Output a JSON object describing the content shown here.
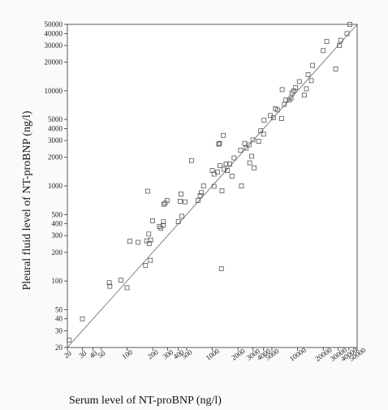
{
  "chart_data": {
    "type": "scatter",
    "title": "",
    "xlabel": "Serum level of NT-proBNP (ng/l)",
    "ylabel": "Pleural fluid level of NT-proBNP (ng/l)",
    "xscale": "log",
    "yscale": "log",
    "xlim": [
      20,
      50000
    ],
    "ylim": [
      20,
      50000
    ],
    "xticks": [
      20,
      30,
      40,
      50,
      100,
      200,
      300,
      400,
      500,
      1000,
      2000,
      3000,
      4000,
      5000,
      10000,
      20000,
      30000,
      40000,
      50000
    ],
    "yticks": [
      20,
      30,
      40,
      50,
      100,
      200,
      300,
      400,
      500,
      1000,
      2000,
      3000,
      4000,
      5000,
      10000,
      20000,
      30000,
      40000,
      50000
    ],
    "grid": false,
    "marker": "open-square",
    "reference_line": "y = x",
    "points": [
      [
        21,
        24
      ],
      [
        30,
        40
      ],
      [
        62,
        96
      ],
      [
        63,
        88
      ],
      [
        85,
        102
      ],
      [
        100,
        85
      ],
      [
        108,
        262
      ],
      [
        135,
        255
      ],
      [
        165,
        146
      ],
      [
        170,
        265
      ],
      [
        175,
        880
      ],
      [
        180,
        312
      ],
      [
        182,
        248
      ],
      [
        188,
        165
      ],
      [
        190,
        270
      ],
      [
        200,
        430
      ],
      [
        240,
        375
      ],
      [
        250,
        360
      ],
      [
        265,
        385
      ],
      [
        268,
        420
      ],
      [
        270,
        640
      ],
      [
        280,
        660
      ],
      [
        295,
        700
      ],
      [
        400,
        420
      ],
      [
        420,
        690
      ],
      [
        430,
        820
      ],
      [
        440,
        480
      ],
      [
        480,
        680
      ],
      [
        570,
        1850
      ],
      [
        680,
        700
      ],
      [
        720,
        790
      ],
      [
        745,
        850
      ],
      [
        790,
        1000
      ],
      [
        1000,
        1450
      ],
      [
        1050,
        990
      ],
      [
        1050,
        1330
      ],
      [
        1150,
        1400
      ],
      [
        1190,
        2750
      ],
      [
        1220,
        2800
      ],
      [
        1230,
        1630
      ],
      [
        1280,
        135
      ],
      [
        1300,
        890
      ],
      [
        1350,
        3400
      ],
      [
        1380,
        1500
      ],
      [
        1450,
        1700
      ],
      [
        1500,
        1450
      ],
      [
        1600,
        1700
      ],
      [
        1700,
        1270
      ],
      [
        1800,
        1970
      ],
      [
        2150,
        2370
      ],
      [
        2200,
        1000
      ],
      [
        2400,
        2800
      ],
      [
        2500,
        2500
      ],
      [
        2700,
        2700
      ],
      [
        2750,
        1750
      ],
      [
        2900,
        2050
      ],
      [
        3000,
        3050
      ],
      [
        3100,
        1550
      ],
      [
        3500,
        2950
      ],
      [
        3700,
        3800
      ],
      [
        4000,
        3500
      ],
      [
        4050,
        4900
      ],
      [
        4800,
        5500
      ],
      [
        5200,
        5200
      ],
      [
        5500,
        6500
      ],
      [
        5800,
        6300
      ],
      [
        6500,
        5100
      ],
      [
        6600,
        10300
      ],
      [
        7000,
        7200
      ],
      [
        7300,
        8000
      ],
      [
        8000,
        8000
      ],
      [
        8400,
        8400
      ],
      [
        8600,
        9500
      ],
      [
        9000,
        10000
      ],
      [
        9500,
        10800
      ],
      [
        10500,
        12500
      ],
      [
        12000,
        9000
      ],
      [
        12700,
        10500
      ],
      [
        13300,
        14800
      ],
      [
        14500,
        12800
      ],
      [
        15000,
        18500
      ],
      [
        20000,
        26500
      ],
      [
        22000,
        33000
      ],
      [
        28000,
        17000
      ],
      [
        31000,
        30000
      ],
      [
        32000,
        34000
      ],
      [
        38000,
        40000
      ],
      [
        41000,
        50000
      ]
    ]
  }
}
